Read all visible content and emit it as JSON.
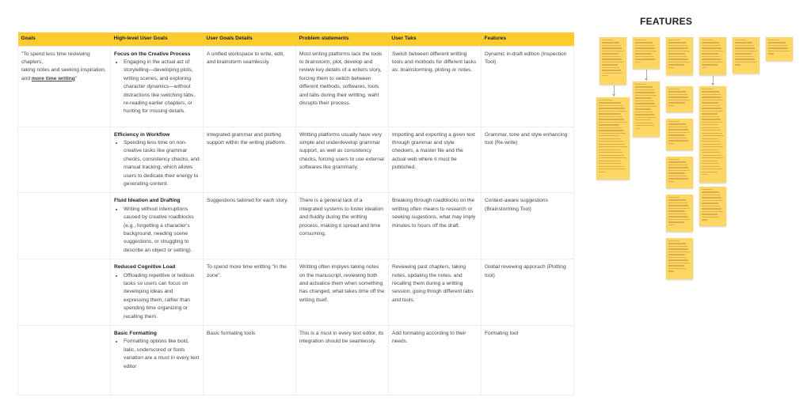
{
  "table": {
    "headers": [
      "Goals",
      "High-level User Goals",
      "User Goals Details",
      "Problem statements",
      "User Taks",
      "Features"
    ],
    "rows": [
      {
        "goal_pre": "\"To spend  less time reviewing chapters,",
        "goal_mid": "taking notes and seeking inspiration, and ",
        "goal_bold": "more time writing",
        "goal_post": "\"",
        "hl_title": "Focus on the Creative Process",
        "hl_bullet": "Engaging in the actual act of storytelling—developing plots, writing scenes, and exploring character dynamics—without distractions like switching tabs, re-reading earlier chapters, or hunting for missing details.",
        "details": "A unified workspace to write, edit, and brainstorm seamlessly.",
        "problem": "Most writing platforms lack the tools to brainstorm, plot, develop and review key details of a writers story, forcing them to switch between different methods, softwares, tools and tabs during their writting, waht disrupts their process.",
        "tasks": "Switch between different writting tools and mothods for different tasks as: brainstorming, ploting or notes.",
        "features": "Dynamic in-draft edition (Inspection Tool)"
      },
      {
        "hl_title": "Efficiency in Workflow",
        "hl_bullet": "Spending less time on non-creative tasks like grammar checks, consistency checks, and manual tracking, which allows users to dedicate their energy to generating content.",
        "details": "Integrated grammar and plotting support within the writing platform.",
        "problem": "Writting platforms usually have very simple and underdevelop grammar support, as well as consistency checks, forcing users to use external softwares like grammarly.",
        "tasks": "Importing and exporting a given text through grammar and style checkers, a master file and the actual web where it must be published.",
        "features": "Grammar, tone and style enhancing tool (Re-write)"
      },
      {
        "hl_title": "Fluid Ideation and Drafting",
        "hl_bullet": "Writing without interruptions caused by creative roadblocks (e.g., forgetting a character's background, needing scene suggestions, or struggling to describe an object or setting).",
        "details": "Suggestions tailored for each story.",
        "problem": "There is a general lack of a integrated systems to foster ideation and fluidity during the writting process, making it spread and time consuming.",
        "tasks": "Breaking through roadblocks on the writting often means to research or seeking sugestions, what may imply minutes to hours off the draft.",
        "features": "Context-aware suggestions (Brainstorming Tool)"
      },
      {
        "hl_title": "Reduced Cognitive Load",
        "hl_bullet": "Offloading repetitive or tedious tasks so users can focus on developing ideas and expressing them, rather than spending time organizing or recalling them.",
        "details": "To spend more time writting \"in the zone\".",
        "problem": "Writting often implyes taking notes on the manuscript, reviewing both and actualice them when something has changed, what takes time off the writing itself.",
        "tasks": "Reviewing past chapters, taking notes, updating the notes,  and recalling them during a writting session, going throgh different tabs and tools.",
        "features": "Global revewing apporach (Plotting tool)"
      },
      {
        "hl_title": "Basic Formatting",
        "hl_bullet": "Formatting options like bold, italic, underscored or fonts variation are a must in every text editor",
        "details": "Basic formating tools",
        "problem": "This is a must in every text editor, its integration should be seamlessly.",
        "tasks": "Add formating according to their needs.",
        "features": "Formating tool"
      }
    ]
  },
  "board": {
    "title": "FEATURES",
    "note_color": "#fdd663",
    "header_color": "#fccc2e"
  }
}
